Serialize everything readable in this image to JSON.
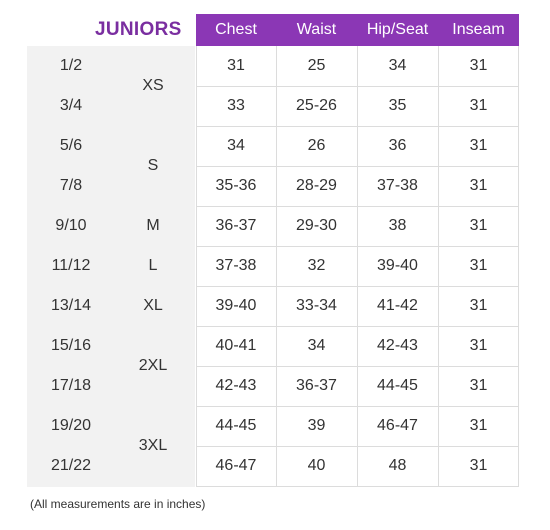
{
  "title": "JUNIORS",
  "columns": [
    "Chest",
    "Waist",
    "Hip/Seat",
    "Inseam"
  ],
  "size_numbers": [
    "1/2",
    "3/4",
    "5/6",
    "7/8",
    "9/10",
    "11/12",
    "13/14",
    "15/16",
    "17/18",
    "19/20",
    "21/22"
  ],
  "size_letters": [
    {
      "label": "XS",
      "start": 0,
      "span": 2
    },
    {
      "label": "S",
      "start": 2,
      "span": 2
    },
    {
      "label": "M",
      "start": 4,
      "span": 1
    },
    {
      "label": "L",
      "start": 5,
      "span": 1
    },
    {
      "label": "XL",
      "start": 6,
      "span": 1
    },
    {
      "label": "2XL",
      "start": 7,
      "span": 2
    },
    {
      "label": "3XL",
      "start": 9,
      "span": 2
    }
  ],
  "rows": [
    [
      "31",
      "25",
      "34",
      "31"
    ],
    [
      "33",
      "25-26",
      "35",
      "31"
    ],
    [
      "34",
      "26",
      "36",
      "31"
    ],
    [
      "35-36",
      "28-29",
      "37-38",
      "31"
    ],
    [
      "36-37",
      "29-30",
      "38",
      "31"
    ],
    [
      "37-38",
      "32",
      "39-40",
      "31"
    ],
    [
      "39-40",
      "33-34",
      "41-42",
      "31"
    ],
    [
      "40-41",
      "34",
      "42-43",
      "31"
    ],
    [
      "42-43",
      "36-37",
      "44-45",
      "31"
    ],
    [
      "44-45",
      "39",
      "46-47",
      "31"
    ],
    [
      "46-47",
      "40",
      "48",
      "31"
    ]
  ],
  "footnote": "(All measurements are in inches)",
  "colors": {
    "title": "#7a2ea0",
    "header_bg": "#8b37b5",
    "panel_bg": "#f2f2f2",
    "grid_line": "#dcdcdc"
  }
}
